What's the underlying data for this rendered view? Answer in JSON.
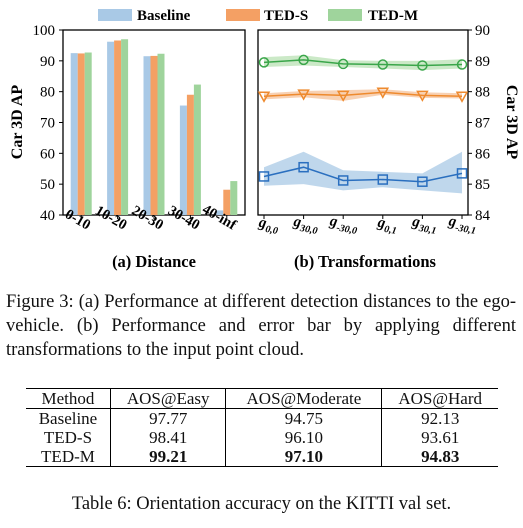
{
  "colors": {
    "baseline": "#a9c9e6",
    "ted_s": "#f4a064",
    "ted_m": "#9fd49c",
    "baseline_line": "#2a6fbf",
    "ted_s_line": "#ee8a2e",
    "ted_m_line": "#3aa64a"
  },
  "chart_data": [
    {
      "type": "bar",
      "title": "(a) Distance",
      "xlabel": "",
      "ylabel": "Car 3D AP",
      "ylim": [
        40,
        100
      ],
      "yticks": [
        "40",
        "50",
        "60",
        "70",
        "80",
        "90",
        "100"
      ],
      "categories": [
        "0-10",
        "10-20",
        "20-30",
        "30-40",
        "40-inf"
      ],
      "series": [
        {
          "name": "Baseline",
          "values": [
            92.5,
            96.2,
            91.5,
            75.5,
            41.5
          ]
        },
        {
          "name": "TED-S",
          "values": [
            92.4,
            96.6,
            91.6,
            79.0,
            48.2
          ]
        },
        {
          "name": "TED-M",
          "values": [
            92.7,
            97.0,
            92.3,
            82.3,
            51.0
          ]
        }
      ]
    },
    {
      "type": "line",
      "title": "(b) Transformations",
      "xlabel": "",
      "ylabel": "Car 3D AP",
      "ylim": [
        84,
        90
      ],
      "yticks": [
        "84",
        "85",
        "86",
        "87",
        "88",
        "89",
        "90"
      ],
      "categories": [
        {
          "base": "g",
          "sub": "0,0"
        },
        {
          "base": "g",
          "sub": "30,0"
        },
        {
          "base": "g",
          "sub": "-30,0"
        },
        {
          "base": "g",
          "sub": "0,1"
        },
        {
          "base": "g",
          "sub": "30,1"
        },
        {
          "base": "g",
          "sub": "-30,1"
        }
      ],
      "series": [
        {
          "name": "Baseline",
          "values": [
            85.25,
            85.55,
            85.12,
            85.15,
            85.08,
            85.35
          ],
          "err_low": [
            84.95,
            85.0,
            84.8,
            84.9,
            84.8,
            84.7
          ],
          "err_high": [
            85.55,
            86.05,
            85.45,
            85.4,
            85.35,
            86.05
          ]
        },
        {
          "name": "TED-S",
          "values": [
            87.85,
            87.92,
            87.88,
            87.98,
            87.88,
            87.85
          ],
          "err_low": [
            87.75,
            87.82,
            87.7,
            87.9,
            87.8,
            87.78
          ],
          "err_high": [
            87.95,
            88.02,
            88.05,
            88.08,
            87.98,
            87.95
          ]
        },
        {
          "name": "TED-M",
          "values": [
            88.95,
            89.03,
            88.9,
            88.88,
            88.85,
            88.88
          ],
          "err_low": [
            88.8,
            88.85,
            88.8,
            88.75,
            88.7,
            88.75
          ],
          "err_high": [
            89.12,
            89.18,
            89.02,
            89.0,
            89.0,
            89.05
          ]
        }
      ]
    }
  ],
  "figure_caption": "Figure 3: (a) Performance at different detection distances to the ego-vehicle. (b) Performance and error bar by applying different transformations to the input point cloud.",
  "table": {
    "headers": [
      "Method",
      "AOS@Easy",
      "AOS@Moderate",
      "AOS@Hard"
    ],
    "rows": [
      [
        "Baseline",
        "97.77",
        "94.75",
        "92.13"
      ],
      [
        "TED-S",
        "98.41",
        "96.10",
        "93.61"
      ],
      [
        "TED-M",
        "99.21",
        "97.10",
        "94.83"
      ]
    ],
    "caption": "Table 6: Orientation accuracy on the KITTI val set."
  }
}
